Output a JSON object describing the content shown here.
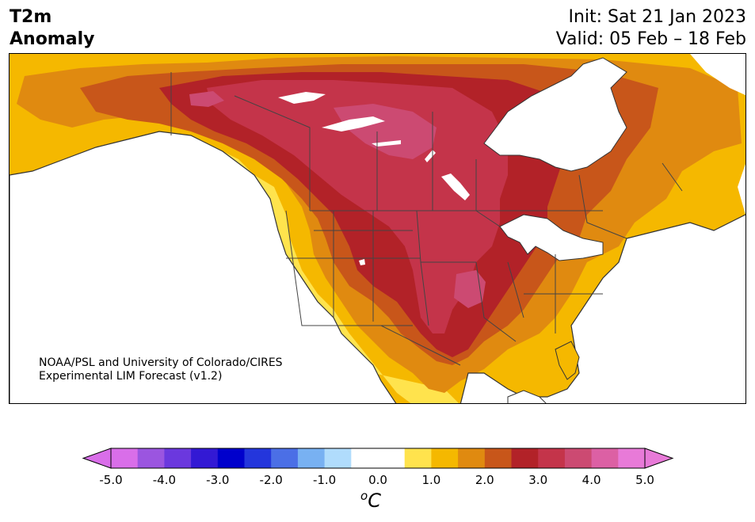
{
  "title": {
    "line1": "T2m",
    "line2": "Anomaly",
    "init": "Init: Sat 21 Jan 2023",
    "valid": "Valid: 05 Feb – 18 Feb"
  },
  "credit": {
    "line1": "NOAA/PSL and University of Colorado/CIRES",
    "line2": "Experimental LIM Forecast (v1.2)"
  },
  "colorbar": {
    "colors": [
      "#d96ee9",
      "#9b55e0",
      "#6b38de",
      "#3319d4",
      "#0000cc",
      "#2436dc",
      "#4b6fe6",
      "#78b1f2",
      "#b0dcfc",
      "#ffffff",
      "#ffffff",
      "#ffe34d",
      "#f5b800",
      "#e08a10",
      "#c8561a",
      "#b22228",
      "#c4344a",
      "#cc4a72",
      "#dc60a4",
      "#e87ad8"
    ],
    "tick_labels": [
      "-5.0",
      "-4.0",
      "-3.0",
      "-2.0",
      "-1.0",
      "0.0",
      "1.0",
      "2.0",
      "3.0",
      "4.0",
      "5.0"
    ],
    "units_base": "C",
    "units_sup": "o"
  },
  "palette": {
    "land_bg": "#f5b800",
    "ocean": "#ffffff",
    "border": "#333333"
  }
}
